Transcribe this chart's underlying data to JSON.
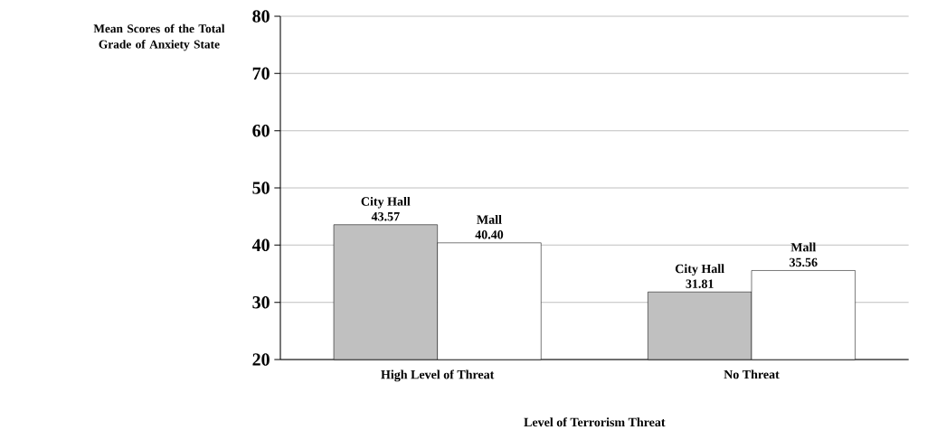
{
  "chart_data": {
    "type": "bar",
    "ylabel": "Mean Scores of the Total Grade of Anxiety State",
    "xlabel": "Level of Terrorism Threat",
    "categories": [
      "High Level of Threat",
      "No Threat"
    ],
    "series": [
      {
        "name": "City Hall",
        "color": "#c0c0c0",
        "values": [
          43.57,
          31.81
        ],
        "value_labels": [
          "43.57",
          "31.81"
        ]
      },
      {
        "name": "Mall",
        "color": "#ffffff",
        "values": [
          40.4,
          35.56
        ],
        "value_labels": [
          "40.40",
          "35.56"
        ]
      }
    ],
    "ylim": [
      20,
      80
    ],
    "yticks": [
      20,
      30,
      40,
      50,
      60,
      70,
      80
    ],
    "grid": "y"
  }
}
